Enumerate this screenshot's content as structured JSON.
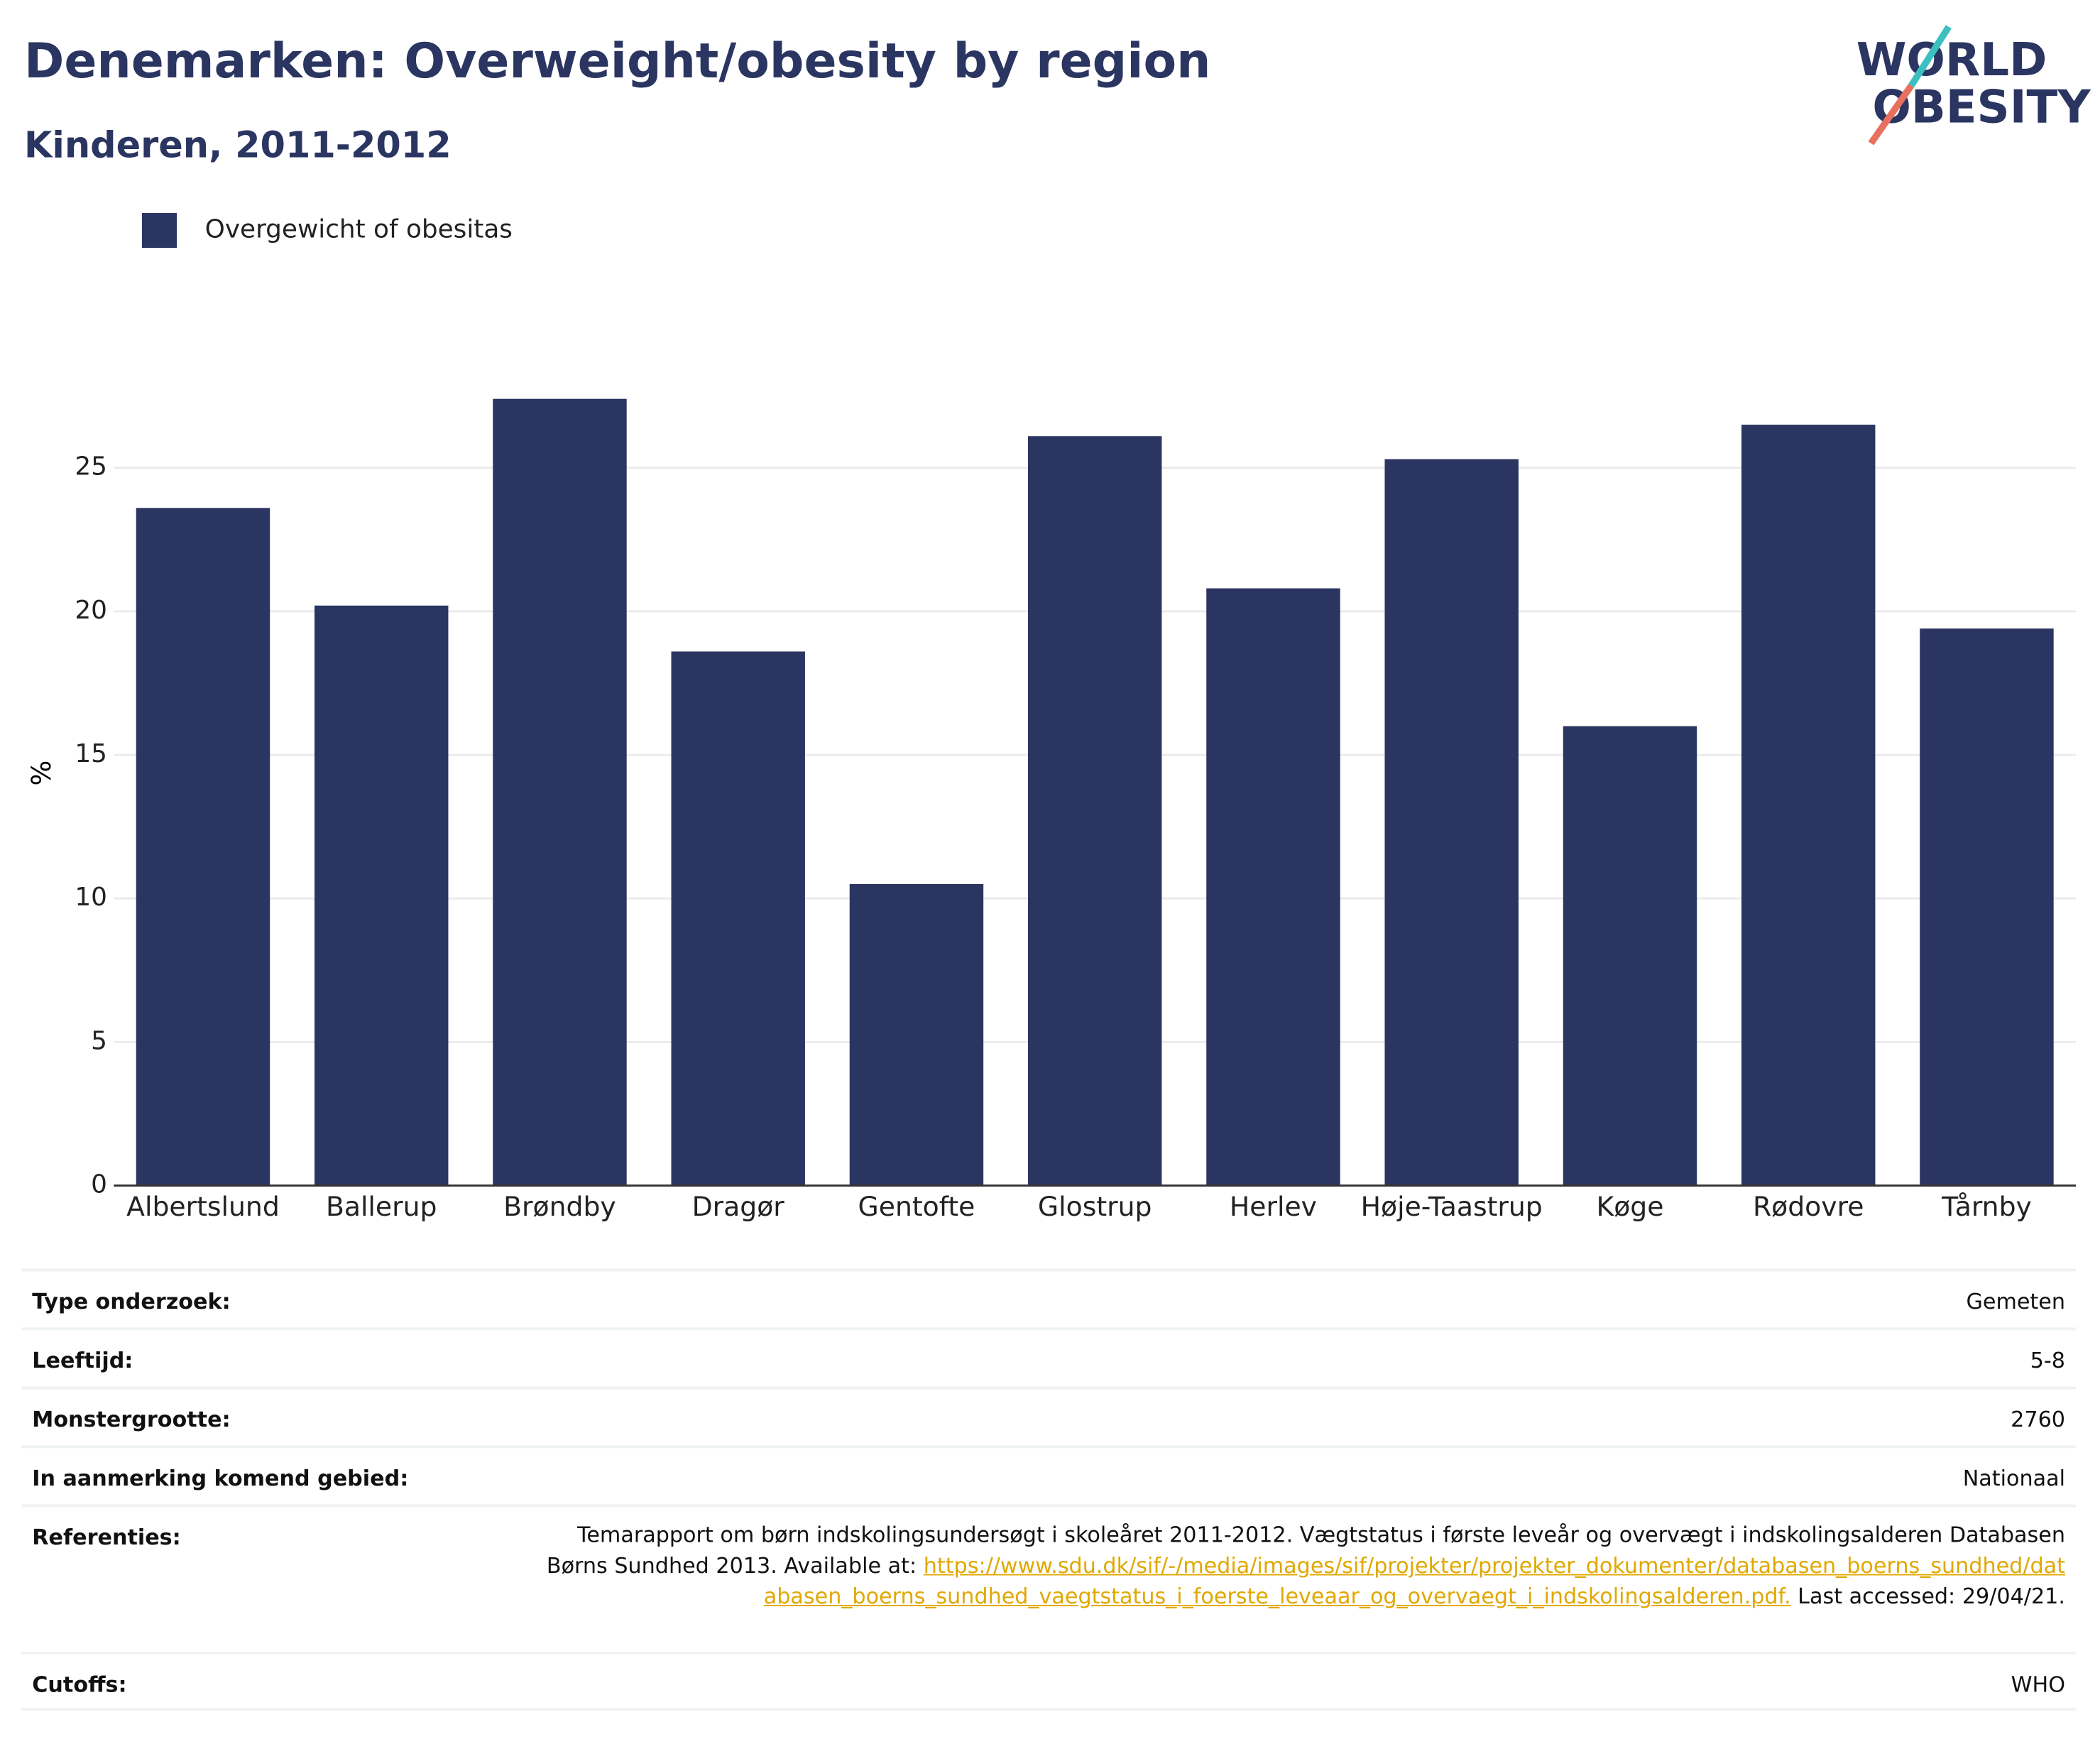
{
  "chart_data": {
    "type": "bar",
    "title": "Denemarken: Overweight/obesity by region",
    "subtitle": "Kinderen, 2011-2012",
    "y_label": "%",
    "categories": [
      "Albertslund",
      "Ballerup",
      "Brøndby",
      "Dragør",
      "Gentofte",
      "Glostrup",
      "Herlev",
      "Høje-Taastrup",
      "Køge",
      "Rødovre",
      "Tårnby"
    ],
    "series": [
      {
        "name": "Overgewicht of obesitas",
        "color": "#2a3561",
        "values": [
          23.6,
          20.2,
          27.4,
          18.6,
          10.5,
          26.1,
          20.8,
          25.3,
          16.0,
          26.5,
          19.4
        ]
      }
    ],
    "ylim": [
      0,
      30
    ],
    "yticks": [
      0,
      5,
      10,
      15,
      20,
      25
    ],
    "grid": true
  },
  "logo": {
    "line1": "WORLD",
    "line2": "OBESITY"
  },
  "table": {
    "rows": [
      {
        "label": "Type onderzoek:",
        "value": "Gemeten"
      },
      {
        "label": "Leeftijd:",
        "value": "5-8"
      },
      {
        "label": "Monstergrootte:",
        "value": "2760"
      },
      {
        "label": "In aanmerking komend gebied:",
        "value": "Nationaal"
      },
      {
        "label": "Referenties:",
        "text": "Temarapport om børn indskolingsundersøgt i skoleåret 2011-2012. Vægtstatus i første leveår og overvægt i indskolingsalderen Databasen Børns Sundhed 2013. Available at:",
        "link": "https://www.sdu.dk/sif/-/media/images/sif/projekter/projekter_dokumenter/databasen_boerns_sundhed/databasen_boerns_sundhed_vaegtstatus_i_foerste_leveaar_og_overvaegt_i_indskolingsalderen.pdf.",
        "note": "Last accessed: 29/04/21."
      },
      {
        "label": "Cutoffs:",
        "value": "WHO"
      }
    ]
  }
}
